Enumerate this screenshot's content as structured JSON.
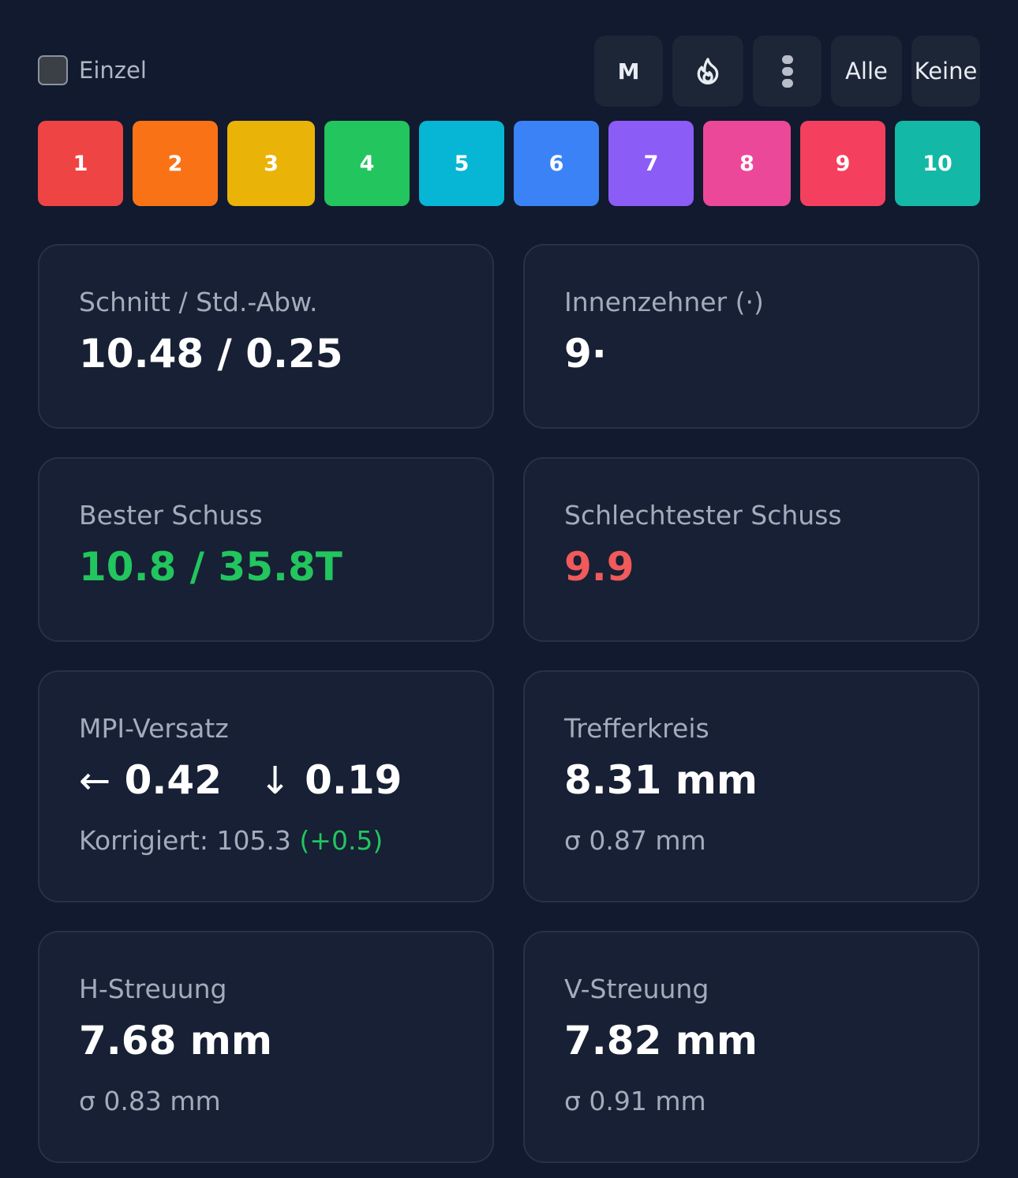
{
  "controls": {
    "einzel_label": "Einzel",
    "einzel_checked": false,
    "m_label": "M",
    "fire_icon": "fire-icon",
    "dots_icon": "traffic-light-icon",
    "alle_label": "Alle",
    "keine_label": "Keine"
  },
  "series_chips": [
    {
      "label": "1",
      "color": "#ef4444"
    },
    {
      "label": "2",
      "color": "#f97316"
    },
    {
      "label": "3",
      "color": "#eab308"
    },
    {
      "label": "4",
      "color": "#22c55e"
    },
    {
      "label": "5",
      "color": "#06b6d4"
    },
    {
      "label": "6",
      "color": "#3b82f6"
    },
    {
      "label": "7",
      "color": "#8b5cf6"
    },
    {
      "label": "8",
      "color": "#ec4899"
    },
    {
      "label": "9",
      "color": "#f43f5e"
    },
    {
      "label": "10",
      "color": "#14b8a6"
    }
  ],
  "stats": {
    "average": {
      "label": "Schnitt / Std.-Abw.",
      "value": "10.48 / 0.25"
    },
    "inner_tens": {
      "label": "Innenzehner (·)",
      "value": "9·"
    },
    "best_shot": {
      "label": "Bester Schuss",
      "value": "10.8 / 35.8T"
    },
    "worst_shot": {
      "label": "Schlechtester Schuss",
      "value": "9.9"
    },
    "mpi_offset": {
      "label": "MPI-Versatz",
      "h_arrow": "←",
      "h_value": "0.42",
      "v_arrow": "↓",
      "v_value": "0.19",
      "corrected_prefix": "Korrigiert: 105.3",
      "corrected_delta": "(+0.5)"
    },
    "hit_circle": {
      "label": "Trefferkreis",
      "value": "8.31 mm",
      "sub": "σ 0.87 mm"
    },
    "h_spread": {
      "label": "H-Streuung",
      "value": "7.68 mm",
      "sub": "σ 0.83 mm"
    },
    "v_spread": {
      "label": "V-Streuung",
      "value": "7.82 mm",
      "sub": "σ 0.91 mm"
    }
  },
  "colors": {
    "background": "#111a2e",
    "card": "#172034",
    "best": "#22c55e",
    "worst": "#f05a5a"
  }
}
